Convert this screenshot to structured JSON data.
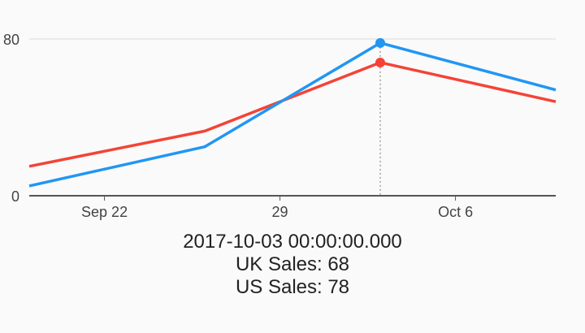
{
  "chart_data": {
    "type": "line",
    "x": [
      "2017-09-19",
      "2017-09-26",
      "2017-10-03",
      "2017-10-10"
    ],
    "series": [
      {
        "name": "US Sales",
        "values": [
          5,
          25,
          78,
          54
        ],
        "color": "#2196f3"
      },
      {
        "name": "UK Sales",
        "values": [
          15,
          33,
          68,
          48
        ],
        "color": "#f44336"
      }
    ],
    "x_ticks": [
      {
        "date": "2017-09-22",
        "label": "Sep 22"
      },
      {
        "date": "2017-09-29",
        "label": "29"
      },
      {
        "date": "2017-10-06",
        "label": "Oct 6"
      }
    ],
    "y_ticks": [
      0,
      80
    ],
    "ylim": [
      0,
      80
    ],
    "xlim": [
      "2017-09-19",
      "2017-10-10"
    ],
    "gridlines": true,
    "selected_x": "2017-10-03"
  },
  "readout": {
    "timestamp": "2017-10-03 00:00:00.000",
    "lines": [
      "UK Sales: 68",
      "US Sales: 78"
    ]
  }
}
